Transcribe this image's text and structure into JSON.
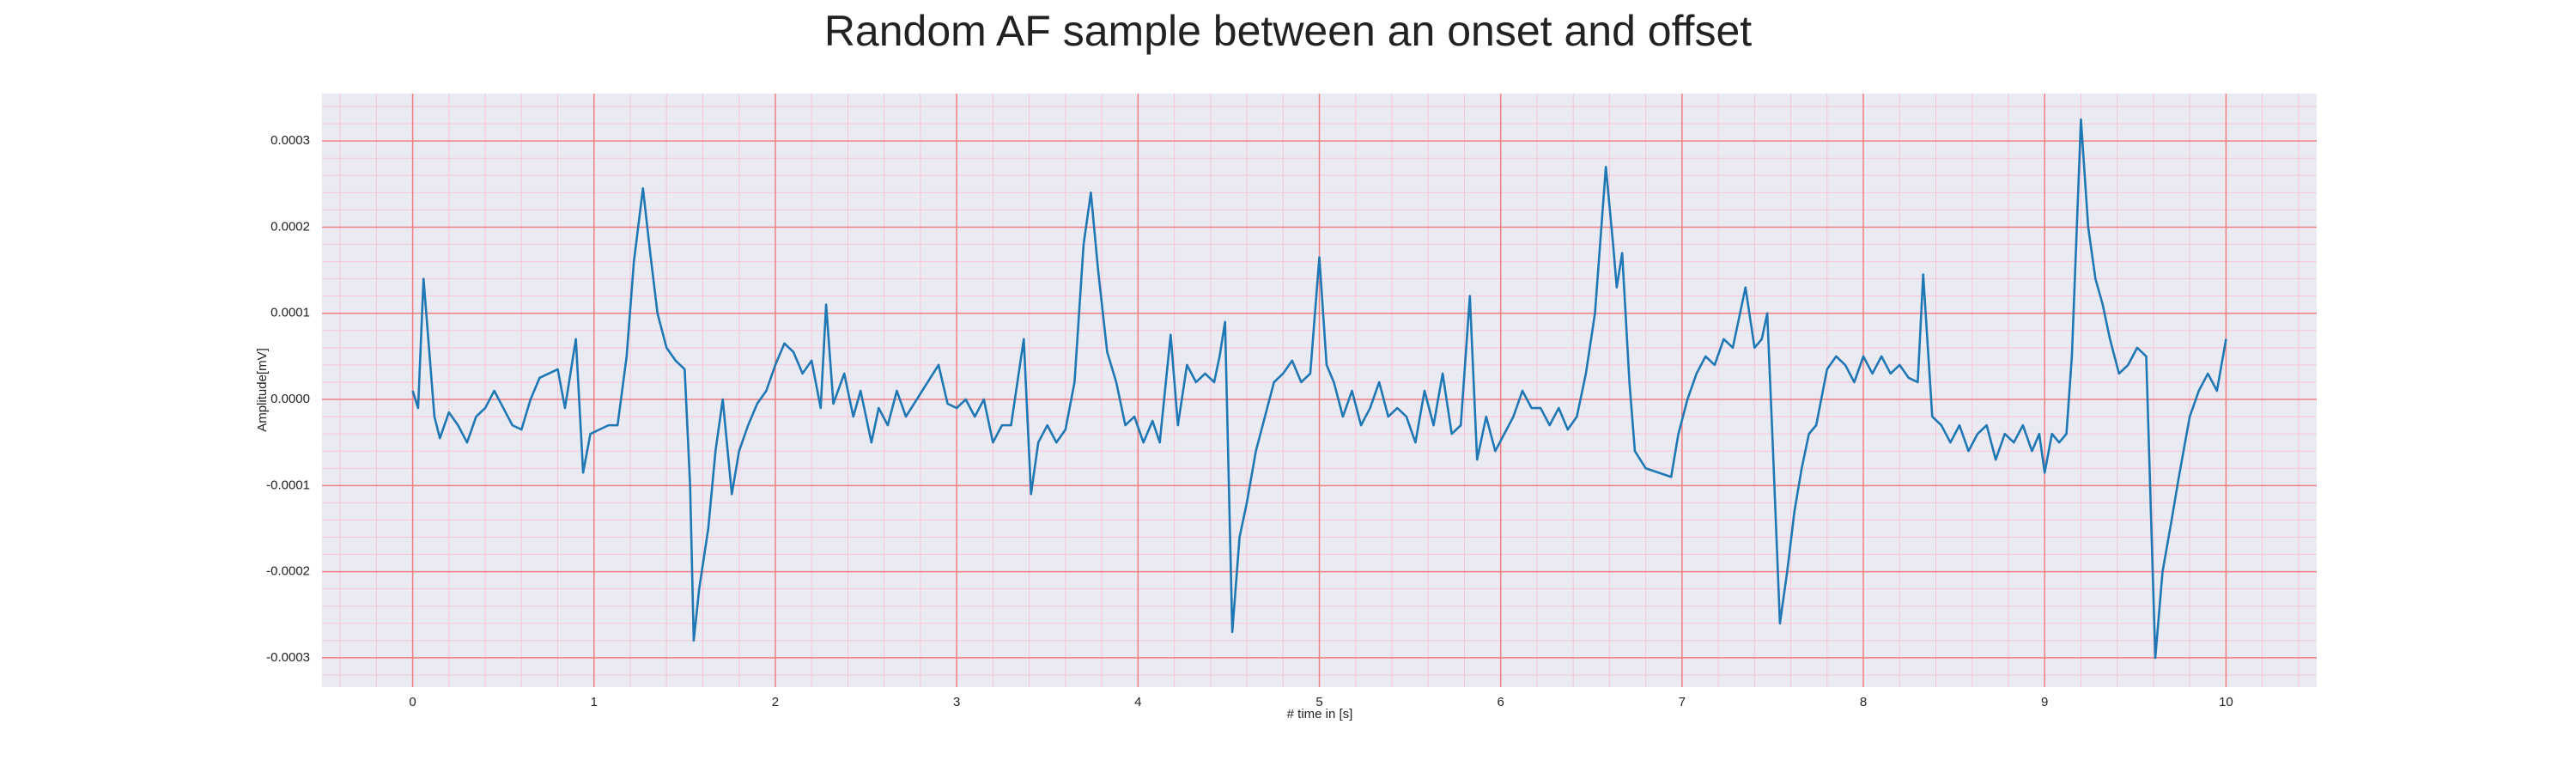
{
  "chart_data": {
    "type": "line",
    "title": "Random AF sample between an onset and offset",
    "xlabel": "# time in [s]",
    "ylabel": "Amplitude[mV]",
    "color": "#1f77b4",
    "grid": true,
    "minor_grid": true,
    "xlim": [
      -0.5,
      10.5
    ],
    "xticks": [
      0,
      1,
      2,
      3,
      4,
      5,
      6,
      7,
      8,
      9,
      10
    ],
    "ylim": [
      -0.000334,
      0.000355
    ],
    "yticks": [
      -0.0003,
      -0.0002,
      -0.0001,
      {
        "value": 0,
        "label": "0.0000"
      },
      0.0001,
      0.0002,
      0.0003
    ],
    "x": [
      0,
      0.03,
      0.06,
      0.09,
      0.12,
      0.15,
      0.2,
      0.25,
      0.3,
      0.35,
      0.4,
      0.45,
      0.5,
      0.55,
      0.6,
      0.65,
      0.7,
      0.75,
      0.8,
      0.84,
      0.87,
      0.9,
      0.94,
      0.98,
      1.03,
      1.08,
      1.13,
      1.18,
      1.22,
      1.27,
      1.31,
      1.35,
      1.4,
      1.45,
      1.5,
      1.53,
      1.55,
      1.58,
      1.63,
      1.67,
      1.71,
      1.76,
      1.8,
      1.85,
      1.9,
      1.95,
      2,
      2.05,
      2.1,
      2.15,
      2.2,
      2.25,
      2.28,
      2.32,
      2.38,
      2.43,
      2.47,
      2.53,
      2.57,
      2.62,
      2.67,
      2.72,
      2.78,
      2.84,
      2.9,
      2.95,
      3,
      3.05,
      3.1,
      3.15,
      3.2,
      3.25,
      3.3,
      3.37,
      3.41,
      3.45,
      3.5,
      3.55,
      3.6,
      3.65,
      3.7,
      3.74,
      3.78,
      3.83,
      3.88,
      3.93,
      3.98,
      4.03,
      4.08,
      4.12,
      4.18,
      4.22,
      4.27,
      4.32,
      4.37,
      4.42,
      4.45,
      4.48,
      4.52,
      4.56,
      4.6,
      4.65,
      4.7,
      4.75,
      4.8,
      4.85,
      4.9,
      4.95,
      5,
      5.04,
      5.08,
      5.13,
      5.18,
      5.23,
      5.28,
      5.33,
      5.38,
      5.43,
      5.48,
      5.53,
      5.58,
      5.63,
      5.68,
      5.73,
      5.78,
      5.83,
      5.87,
      5.92,
      5.97,
      6.02,
      6.07,
      6.12,
      6.17,
      6.22,
      6.27,
      6.32,
      6.37,
      6.42,
      6.47,
      6.52,
      6.58,
      6.62,
      6.64,
      6.67,
      6.71,
      6.74,
      6.8,
      6.87,
      6.94,
      6.98,
      7.03,
      7.08,
      7.13,
      7.18,
      7.23,
      7.28,
      7.35,
      7.4,
      7.44,
      7.47,
      7.5,
      7.54,
      7.58,
      7.62,
      7.66,
      7.7,
      7.74,
      7.8,
      7.85,
      7.9,
      7.95,
      8,
      8.05,
      8.1,
      8.15,
      8.2,
      8.25,
      8.3,
      8.33,
      8.38,
      8.43,
      8.48,
      8.53,
      8.58,
      8.63,
      8.68,
      8.73,
      8.78,
      8.83,
      8.88,
      8.93,
      8.97,
      9,
      9.04,
      9.08,
      9.12,
      9.15,
      9.2,
      9.24,
      9.28,
      9.32,
      9.36,
      9.41,
      9.46,
      9.51,
      9.56,
      9.61,
      9.65,
      9.7,
      9.74,
      9.8,
      9.85,
      9.9,
      9.95,
      10
    ],
    "values": [
      1e-05,
      -1e-05,
      0.00014,
      6e-05,
      -2e-05,
      -4.5e-05,
      -1.5e-05,
      -3e-05,
      -5e-05,
      -2e-05,
      -1e-05,
      1e-05,
      -1e-05,
      -3e-05,
      -3.5e-05,
      0,
      2.5e-05,
      3e-05,
      3.5e-05,
      -1e-05,
      3e-05,
      7e-05,
      -8.5e-05,
      -4e-05,
      -3.5e-05,
      -3e-05,
      -3e-05,
      5e-05,
      0.00016,
      0.000245,
      0.00017,
      0.0001,
      6e-05,
      4.5e-05,
      3.5e-05,
      -0.0001,
      -0.00028,
      -0.00022,
      -0.00015,
      -6e-05,
      0,
      -0.00011,
      -6e-05,
      -3e-05,
      -5e-06,
      1e-05,
      4e-05,
      6.5e-05,
      5.5e-05,
      3e-05,
      4.5e-05,
      -1e-05,
      0.00011,
      -5e-06,
      3e-05,
      -2e-05,
      1e-05,
      -5e-05,
      -1e-05,
      -3e-05,
      1e-05,
      -2e-05,
      0,
      2e-05,
      4e-05,
      -5e-06,
      -1e-05,
      0,
      -2e-05,
      0,
      -5e-05,
      -3e-05,
      -3e-05,
      7e-05,
      -0.00011,
      -5e-05,
      -3e-05,
      -5e-05,
      -3.5e-05,
      2e-05,
      0.00018,
      0.00024,
      0.00015,
      5.5e-05,
      2e-05,
      -3e-05,
      -2e-05,
      -5e-05,
      -2.5e-05,
      -5e-05,
      7.5e-05,
      -3e-05,
      4e-05,
      2e-05,
      3e-05,
      2e-05,
      5e-05,
      9e-05,
      -0.00027,
      -0.00016,
      -0.00012,
      -6e-05,
      -2e-05,
      2e-05,
      3e-05,
      4.5e-05,
      2e-05,
      3e-05,
      0.000165,
      4e-05,
      2e-05,
      -2e-05,
      1e-05,
      -3e-05,
      -1e-05,
      2e-05,
      -2e-05,
      -1e-05,
      -2e-05,
      -5e-05,
      1e-05,
      -3e-05,
      3e-05,
      -4e-05,
      -3e-05,
      0.00012,
      -7e-05,
      -2e-05,
      -6e-05,
      -4e-05,
      -2e-05,
      1e-05,
      -1e-05,
      -1e-05,
      -3e-05,
      -1e-05,
      -3.5e-05,
      -2e-05,
      3e-05,
      0.0001,
      0.00027,
      0.00018,
      0.00013,
      0.00017,
      2e-05,
      -6e-05,
      -8e-05,
      -8.5e-05,
      -9e-05,
      -4e-05,
      0,
      3e-05,
      5e-05,
      4e-05,
      7e-05,
      6e-05,
      0.00013,
      6e-05,
      7e-05,
      0.0001,
      -5e-05,
      -0.00026,
      -0.0002,
      -0.00013,
      -8e-05,
      -4e-05,
      -3e-05,
      3.5e-05,
      5e-05,
      4e-05,
      2e-05,
      5e-05,
      3e-05,
      5e-05,
      3e-05,
      4e-05,
      2.5e-05,
      2e-05,
      0.000145,
      -2e-05,
      -3e-05,
      -5e-05,
      -3e-05,
      -6e-05,
      -4e-05,
      -3e-05,
      -7e-05,
      -4e-05,
      -5e-05,
      -3e-05,
      -6e-05,
      -4e-05,
      -8.5e-05,
      -4e-05,
      -5e-05,
      -4e-05,
      5e-05,
      0.000325,
      0.0002,
      0.00014,
      0.00011,
      7e-05,
      3e-05,
      4e-05,
      6e-05,
      5e-05,
      -0.0003,
      -0.0002,
      -0.00014,
      -9e-05,
      -2e-05,
      1e-05,
      3e-05,
      1e-05,
      7e-05
    ]
  }
}
